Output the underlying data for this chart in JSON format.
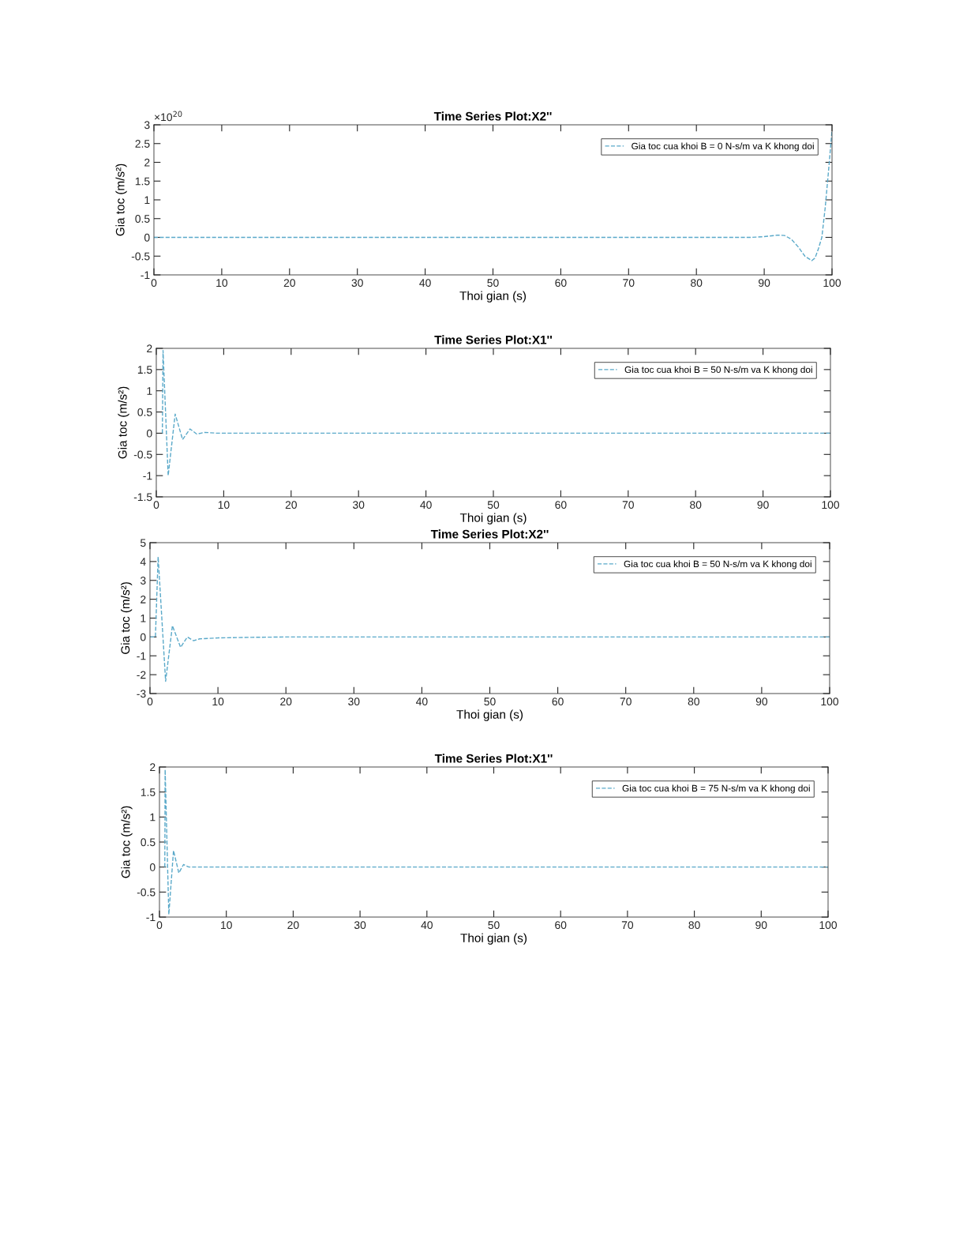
{
  "chart_data": [
    {
      "type": "line",
      "title": "Time Series Plot:X2''",
      "xlabel": "Thoi gian (s)",
      "ylabel": "Gia toc (m/s²)",
      "annotations": [
        "×10$^{20}$"
      ],
      "series": [
        {
          "name": "Gia toc cua khoi B = 0 N-s/m va K khong doi",
          "color": "#5aa9c9",
          "x": [
            0,
            50,
            88,
            90,
            92,
            93,
            94,
            95,
            96,
            97,
            97.5,
            98,
            98.5,
            99,
            99.5,
            100
          ],
          "values": [
            0,
            0,
            0,
            0.02,
            0.06,
            0.05,
            -0.05,
            -0.25,
            -0.5,
            -0.62,
            -0.55,
            -0.3,
            0.0,
            0.8,
            1.8,
            2.85
          ]
        }
      ],
      "xlim": [
        0,
        100
      ],
      "xticks": [
        0,
        10,
        20,
        30,
        40,
        50,
        60,
        70,
        80,
        90,
        100
      ],
      "ylim": [
        -1,
        3
      ],
      "yticks": [
        -1,
        -0.5,
        0,
        0.5,
        1,
        1.5,
        2,
        2.5,
        3
      ],
      "grid": false,
      "legend": "top right",
      "line_style": "dashed",
      "marker": "none"
    },
    {
      "type": "line",
      "title": "Time Series Plot:X1''",
      "xlabel": "Thoi gian (s)",
      "ylabel": "Gia toc (m/s²)",
      "series": [
        {
          "name": "Gia toc cua khoi B = 50 N-s/m va K khong doi",
          "color": "#5aa9c9",
          "x": [
            0.9,
            1.0,
            1.76,
            2.8,
            3.9,
            5.0,
            6.0,
            7.2,
            9,
            50,
            100
          ],
          "values": [
            0,
            1.95,
            -1.0,
            0.45,
            -0.15,
            0.1,
            -0.02,
            0.02,
            0,
            0,
            0
          ]
        }
      ],
      "xlim": [
        0,
        100
      ],
      "xticks": [
        0,
        10,
        20,
        30,
        40,
        50,
        60,
        70,
        80,
        90,
        100
      ],
      "ylim": [
        -1.5,
        2
      ],
      "yticks": [
        -1.5,
        -1,
        -0.5,
        0,
        0.5,
        1,
        1.5,
        2
      ],
      "grid": false,
      "legend": "top right",
      "line_style": "dashed",
      "marker": "none"
    },
    {
      "type": "line",
      "title": "Time Series Plot:X2''",
      "xlabel": "Thoi gian (s)",
      "ylabel": "Gia toc (m/s²)",
      "series": [
        {
          "name": "Gia toc cua khoi B = 50 N-s/m va K khong doi",
          "color": "#5aa9c9",
          "x": [
            0,
            0.8,
            1.2,
            2.3,
            3.3,
            4.5,
            5.5,
            6.4,
            7.3,
            10,
            15,
            20,
            50,
            100
          ],
          "values": [
            0,
            0,
            4.25,
            -2.35,
            0.6,
            -0.55,
            0.0,
            -0.2,
            -0.1,
            -0.05,
            -0.02,
            0,
            0,
            0
          ]
        }
      ],
      "xlim": [
        0,
        100
      ],
      "xticks": [
        0,
        10,
        20,
        30,
        40,
        50,
        60,
        70,
        80,
        90,
        100
      ],
      "ylim": [
        -3,
        5
      ],
      "yticks": [
        -3,
        -2,
        -1,
        0,
        1,
        2,
        3,
        4,
        5
      ],
      "grid": false,
      "legend": "top right",
      "line_style": "dashed",
      "marker": "none"
    },
    {
      "type": "line",
      "title": "Time Series Plot:X1''",
      "xlabel": "Thoi gian (s)",
      "ylabel": "Gia toc (m/s²)",
      "series": [
        {
          "name": "Gia toc cua khoi B = 75 N-s/m va K khong doi",
          "color": "#5aa9c9",
          "x": [
            0.8,
            0.85,
            1.4,
            2.1,
            2.9,
            3.6,
            4.4,
            50,
            100
          ],
          "values": [
            0,
            1.95,
            -0.95,
            0.33,
            -0.12,
            0.05,
            0,
            0,
            0
          ]
        }
      ],
      "xlim": [
        0,
        100
      ],
      "xticks": [
        0,
        10,
        20,
        30,
        40,
        50,
        60,
        70,
        80,
        90,
        100
      ],
      "ylim": [
        -1,
        2
      ],
      "yticks": [
        -1,
        -0.5,
        0,
        0.5,
        1,
        1.5,
        2
      ],
      "grid": false,
      "legend": "top right",
      "line_style": "dashed",
      "marker": "none"
    }
  ]
}
